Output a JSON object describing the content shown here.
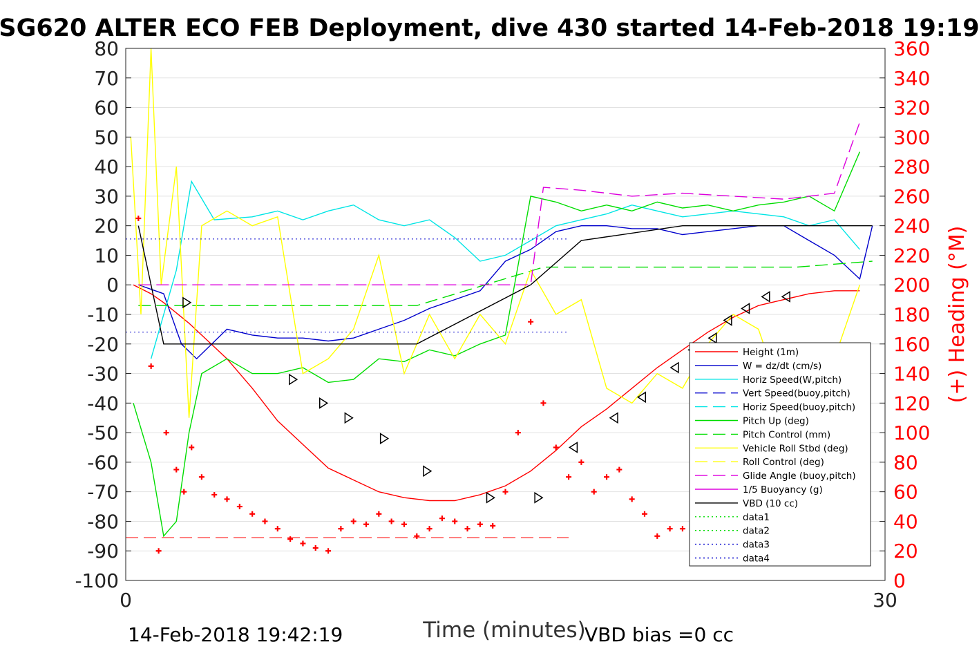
{
  "chart_data": {
    "type": "line",
    "title": "SG620 ALTER ECO FEB Deployment, dive 430 started 14-Feb-2018 19:19",
    "xlabel": "Time (minutes)",
    "ylabel_right": "(+) Heading (°M)",
    "footer_left": "14-Feb-2018 19:42:19",
    "footer_right": "VBD bias =0 cc",
    "xlim": [
      0,
      30
    ],
    "ylim_left": [
      -100,
      80
    ],
    "ylim_right": [
      0,
      360
    ],
    "x_ticks": [
      "0",
      "30"
    ],
    "y_ticks_left": [
      "80",
      "70",
      "60",
      "50",
      "40",
      "30",
      "20",
      "10",
      "0",
      "-10",
      "-20",
      "-30",
      "-40",
      "-50",
      "-60",
      "-70",
      "-80",
      "-90",
      "-100"
    ],
    "y_ticks_right": [
      "360",
      "340",
      "320",
      "300",
      "280",
      "260",
      "240",
      "220",
      "200",
      "180",
      "160",
      "140",
      "120",
      "100",
      "80",
      "60",
      "40",
      "20",
      "0"
    ],
    "grid": "horizontal",
    "legend_position": "lower-right",
    "colors": {
      "height": "#ff0000",
      "w": "#0000cc",
      "horiz_speed": "#00e5e5",
      "pitch": "#00dd00",
      "roll": "#ffff00",
      "glide": "#dd00dd",
      "buoyancy": "#dd00dd",
      "vbd": "#000000",
      "heading": "#ff0000",
      "right_axis": "#ff0000"
    },
    "legend": [
      {
        "label": "Height (1m)",
        "color": "#ff0000",
        "dash": "solid"
      },
      {
        "label": "W = dz/dt (cm/s)",
        "color": "#0000cc",
        "dash": "solid"
      },
      {
        "label": "Horiz Speed(W,pitch)",
        "color": "#00e5e5",
        "dash": "solid"
      },
      {
        "label": "Vert Speed(buoy,pitch)",
        "color": "#0000cc",
        "dash": "dashed"
      },
      {
        "label": "Horiz Speed(buoy,pitch)",
        "color": "#00e5e5",
        "dash": "dashed"
      },
      {
        "label": "Pitch Up (deg)",
        "color": "#00dd00",
        "dash": "solid"
      },
      {
        "label": "Pitch Control (mm)",
        "color": "#00dd00",
        "dash": "dashed"
      },
      {
        "label": "Vehicle Roll Stbd (deg)",
        "color": "#ffff00",
        "dash": "solid"
      },
      {
        "label": "Roll Control (deg)",
        "color": "#ffff00",
        "dash": "dashed"
      },
      {
        "label": "Glide Angle (buoy,pitch)",
        "color": "#dd00dd",
        "dash": "dashed"
      },
      {
        "label": "1/5 Buoyancy (g)",
        "color": "#dd00dd",
        "dash": "solid"
      },
      {
        "label": "VBD (10 cc)",
        "color": "#000000",
        "dash": "solid"
      },
      {
        "label": "data1",
        "color": "#00dd00",
        "dash": "dotted"
      },
      {
        "label": "data2",
        "color": "#00dd00",
        "dash": "dotted"
      },
      {
        "label": "data3",
        "color": "#0000cc",
        "dash": "dotted"
      },
      {
        "label": "data4",
        "color": "#0000cc",
        "dash": "dotted"
      }
    ],
    "series": [
      {
        "name": "Height (1m)",
        "x": [
          0.3,
          1.0,
          1.5,
          2.5,
          4,
          5,
          6,
          7,
          8,
          9,
          10,
          11,
          12,
          13,
          14,
          15,
          16,
          17,
          18,
          19,
          20,
          21,
          22,
          23,
          24,
          25,
          26,
          27,
          28,
          29
        ],
        "y": [
          0,
          -3,
          -6,
          -13,
          -25,
          -35,
          -46,
          -54,
          -62,
          -66,
          -70,
          -72,
          -73,
          -73,
          -71,
          -68,
          -63,
          -56,
          -48,
          -42,
          -35,
          -28,
          -22,
          -16,
          -11,
          -7,
          -5,
          -3,
          -2,
          -2
        ]
      },
      {
        "name": "W = dz/dt (cm/s)",
        "x": [
          0.5,
          1.5,
          2.2,
          2.8,
          4,
          5,
          6,
          7,
          8,
          9,
          10,
          11,
          12,
          13,
          14,
          15,
          16,
          17,
          18,
          19,
          20,
          21,
          22,
          23,
          24,
          25,
          26,
          27,
          28,
          29,
          29.5
        ],
        "y": [
          0,
          -3,
          -20,
          -25,
          -15,
          -17,
          -18,
          -18,
          -19,
          -18,
          -15,
          -12,
          -8,
          -5,
          -2,
          8,
          12,
          18,
          20,
          20,
          19,
          19,
          17,
          18,
          19,
          20,
          20,
          15,
          10,
          2,
          20
        ]
      },
      {
        "name": "Horiz Speed(W,pitch)",
        "x": [
          1,
          2,
          2.6,
          3.5,
          5,
          6,
          7,
          8,
          9,
          10,
          11,
          12,
          13,
          14,
          15,
          16,
          17,
          18,
          19,
          20,
          21,
          22,
          23,
          24,
          25,
          26,
          27,
          28,
          29
        ],
        "y": [
          -25,
          5,
          35,
          22,
          23,
          25,
          22,
          25,
          27,
          22,
          20,
          22,
          16,
          8,
          10,
          15,
          20,
          22,
          24,
          27,
          25,
          23,
          24,
          25,
          24,
          23,
          20,
          22,
          12
        ]
      },
      {
        "name": "Pitch Up (deg)",
        "x": [
          0.3,
          1,
          1.5,
          2,
          2.5,
          3,
          4,
          5,
          6,
          7,
          8,
          9,
          10,
          11,
          12,
          13,
          14,
          15,
          16,
          17,
          18,
          19,
          20,
          21,
          22,
          23,
          24,
          25,
          26,
          27,
          28,
          29
        ],
        "y": [
          -40,
          -60,
          -85,
          -80,
          -50,
          -30,
          -25,
          -30,
          -30,
          -28,
          -33,
          -32,
          -25,
          -26,
          -22,
          -24,
          -20,
          -17,
          30,
          28,
          25,
          27,
          25,
          28,
          26,
          27,
          25,
          27,
          28,
          30,
          25,
          45
        ]
      },
      {
        "name": "Pitch Control (mm)",
        "x": [
          0.5,
          2.5,
          11.5,
          16.5,
          26.5,
          29.5
        ],
        "y": [
          -7,
          -7,
          -7,
          6,
          6,
          8
        ]
      },
      {
        "name": "Vehicle Roll Stbd (deg)",
        "x": [
          0.2,
          0.6,
          1,
          1.4,
          2,
          2.5,
          3,
          4,
          5,
          6,
          7,
          8,
          9,
          10,
          11,
          12,
          13,
          14,
          15,
          16,
          17,
          18,
          19,
          20,
          21,
          22,
          23,
          24,
          25,
          26,
          27,
          28,
          29
        ],
        "y": [
          50,
          -10,
          80,
          0,
          40,
          -45,
          20,
          25,
          20,
          23,
          -30,
          -25,
          -15,
          10,
          -30,
          -10,
          -25,
          -10,
          -20,
          5,
          -10,
          -5,
          -35,
          -40,
          -30,
          -35,
          -20,
          -10,
          -15,
          -40,
          -30,
          -25,
          0
        ]
      },
      {
        "name": "Glide Angle (buoy,pitch)",
        "x": [
          0.5,
          16,
          16.5,
          18,
          20,
          22,
          24,
          26,
          28,
          29
        ],
        "y": [
          0,
          0,
          33,
          32,
          30,
          31,
          30,
          29,
          31,
          55
        ]
      },
      {
        "name": "VBD (10 cc)",
        "x": [
          0.5,
          1.5,
          4,
          8,
          11.5,
          16,
          18,
          22,
          26,
          29.5
        ],
        "y": [
          20,
          -20,
          -20,
          -20,
          -20,
          0,
          15,
          20,
          20,
          20
        ]
      }
    ],
    "heading_series": {
      "name": "Heading",
      "x": [
        0.5,
        1,
        1.3,
        1.6,
        2,
        2.3,
        2.6,
        3,
        3.5,
        4,
        4.5,
        5,
        5.5,
        6,
        6.5,
        7,
        7.5,
        8,
        8.5,
        9,
        9.5,
        10,
        10.5,
        11,
        11.5,
        12,
        12.5,
        13,
        13.5,
        14,
        14.5,
        15,
        15.5,
        16,
        16.5,
        17,
        17.5,
        18,
        18.5,
        19,
        19.5,
        20,
        20.5,
        21,
        21.5,
        22,
        22.5,
        23,
        23.5,
        24,
        24.5,
        25,
        25.5,
        26,
        26.5,
        27,
        27.5,
        28,
        28.5,
        29
      ],
      "y": [
        245,
        145,
        20,
        100,
        75,
        60,
        90,
        70,
        58,
        55,
        50,
        45,
        40,
        35,
        28,
        25,
        22,
        20,
        35,
        40,
        38,
        45,
        40,
        38,
        30,
        35,
        42,
        40,
        35,
        38,
        37,
        60,
        100,
        175,
        120,
        90,
        70,
        80,
        60,
        70,
        75,
        55,
        45,
        30,
        35,
        35,
        30,
        28,
        25,
        30,
        35,
        40,
        42,
        30,
        25,
        20,
        18,
        32,
        28,
        40
      ]
    },
    "markers": {
      "name": "Dive markers",
      "x": [
        2.4,
        6.6,
        7.8,
        8.8,
        10.2,
        11.9,
        14.4,
        16.3,
        17.7,
        19.3,
        20.4,
        21.7,
        22.4,
        23.2,
        23.8,
        24.5,
        25.3,
        26.1
      ],
      "y": [
        -6,
        -32,
        -40,
        -45,
        -52,
        -63,
        -72,
        -72,
        -55,
        -45,
        -38,
        -28,
        -22,
        -18,
        -12,
        -8,
        -4,
        -4
      ]
    }
  }
}
